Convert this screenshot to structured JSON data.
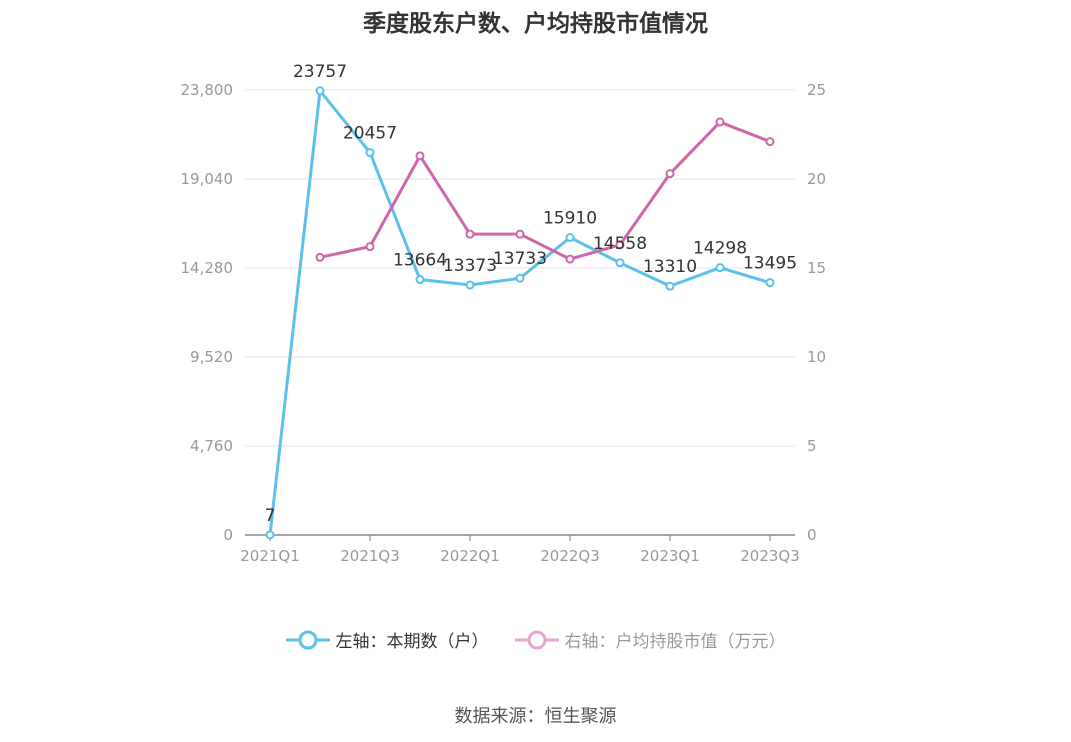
{
  "title": "季度股东户数、户均持股市值情况",
  "source": "数据来源：恒生聚源",
  "colors": {
    "left_series": "#5bc0eb",
    "right_series": "#d066a8",
    "grid": "#e3e6ef",
    "axis": "#8a8a8a"
  },
  "chart_data": {
    "type": "line",
    "categories": [
      "2021Q1",
      "2021Q2",
      "2021Q3",
      "2021Q4",
      "2022Q1",
      "2022Q2",
      "2022Q3",
      "2022Q4",
      "2023Q1",
      "2023Q2",
      "2023Q3"
    ],
    "x_tick_labels": [
      "2021Q1",
      "2021Q3",
      "2022Q1",
      "2022Q3",
      "2023Q1",
      "2023Q3"
    ],
    "y_left": {
      "ylim": [
        0,
        23800
      ],
      "ticks": [
        "0",
        "4,760",
        "9,520",
        "14,280",
        "19,040",
        "23,800"
      ]
    },
    "y_right": {
      "ylim": [
        0,
        25
      ],
      "ticks": [
        "0",
        "5",
        "10",
        "15",
        "20",
        "25"
      ]
    },
    "grid": true,
    "legend_position": "bottom",
    "series": [
      {
        "name": "左轴：本期数（户）",
        "axis": "left",
        "values": [
          7,
          23757,
          20457,
          13664,
          13373,
          13733,
          15910,
          14558,
          13310,
          14298,
          13495
        ],
        "labels": [
          "7",
          "23757",
          "20457",
          "13664",
          "13373",
          "13733",
          "15910",
          "14558",
          "13310",
          "14298",
          "13495"
        ]
      },
      {
        "name": "右轴：户均持股市值（万元）",
        "axis": "right",
        "values": [
          null,
          15.6,
          16.2,
          21.3,
          16.9,
          16.9,
          15.5,
          16.3,
          20.3,
          23.2,
          22.1
        ]
      }
    ]
  }
}
